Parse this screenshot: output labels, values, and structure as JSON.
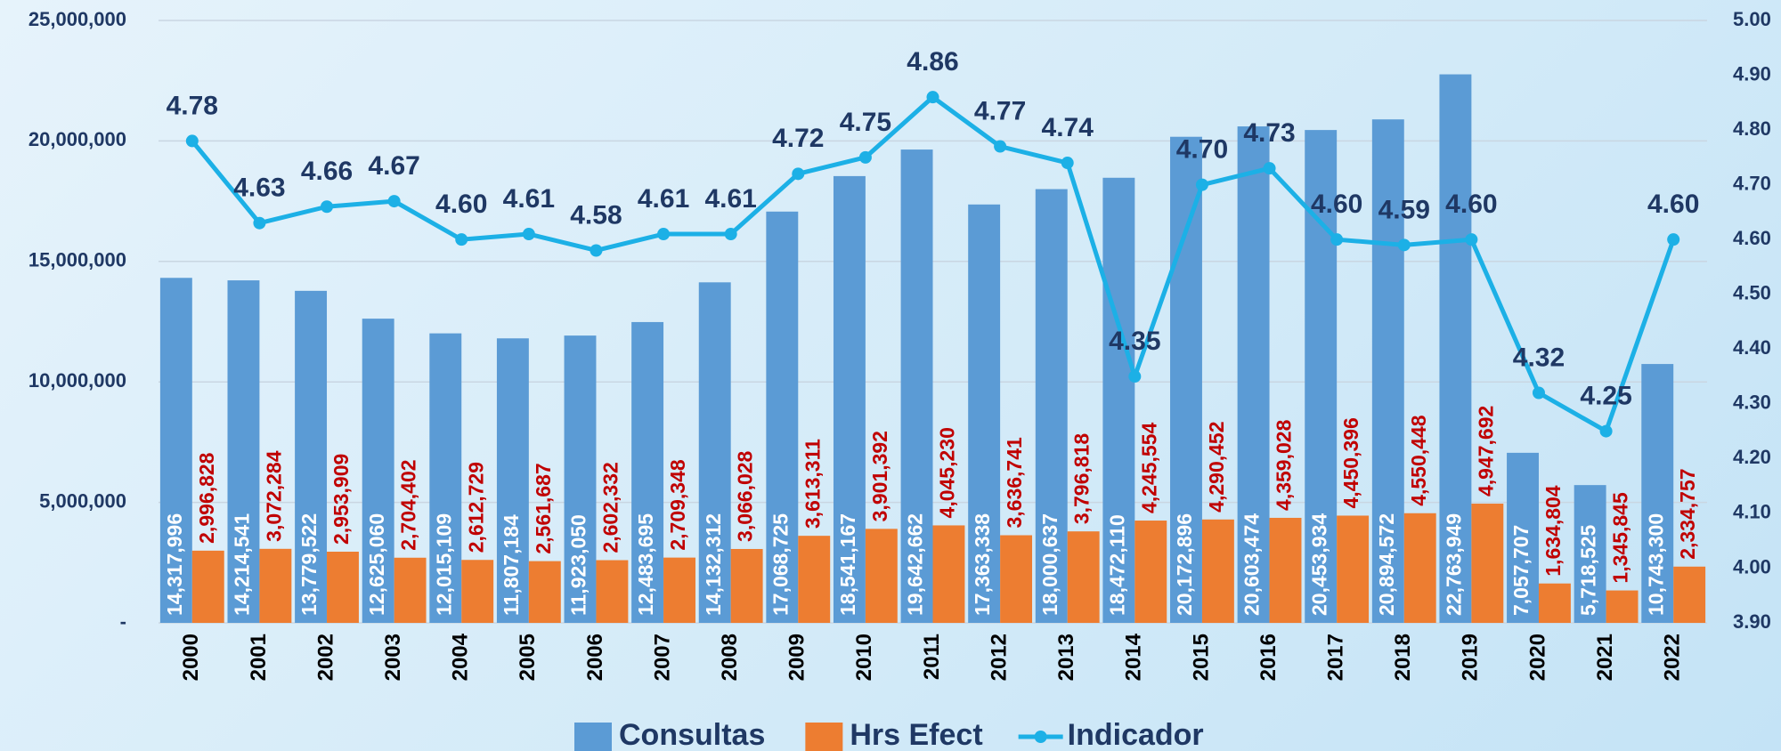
{
  "chart_data": {
    "type": "bar",
    "categories": [
      "2000",
      "2001",
      "2002",
      "2003",
      "2004",
      "2005",
      "2006",
      "2007",
      "2008",
      "2009",
      "2010",
      "2011",
      "2012",
      "2013",
      "2014",
      "2015",
      "2016",
      "2017",
      "2018",
      "2019",
      "2020",
      "2021",
      "2022"
    ],
    "series": [
      {
        "name": "Consultas",
        "type": "bar",
        "color": "#5b9bd5",
        "values": [
          14317996,
          14214541,
          13779522,
          12625060,
          12015109,
          11807184,
          11923050,
          12483695,
          14132312,
          17068725,
          18541167,
          19642662,
          17363338,
          18000637,
          18472110,
          20172896,
          20603474,
          20453934,
          20894572,
          22763949,
          7057707,
          5718525,
          10743300
        ],
        "value_labels": [
          "14,317,996",
          "14,214,541",
          "13,779,522",
          "12,625,060",
          "12,015,109",
          "11,807,184",
          "11,923,050",
          "12,483,695",
          "14,132,312",
          "17,068,725",
          "18,541,167",
          "19,642,662",
          "17,363,338",
          "18,000,637",
          "18,472,110",
          "20,172,896",
          "20,603,474",
          "20,453,934",
          "20,894,572",
          "22,763,949",
          "7,057,707",
          "5,718,525",
          "10,743,300"
        ]
      },
      {
        "name": "Hrs Efect",
        "type": "bar",
        "color": "#ed7d31",
        "values": [
          2996828,
          3072284,
          2953909,
          2704402,
          2612729,
          2561687,
          2602332,
          2709348,
          3066028,
          3613311,
          3901392,
          4045230,
          3636741,
          3796818,
          4245554,
          4290452,
          4359028,
          4450396,
          4550448,
          4947692,
          1634804,
          1345845,
          2334757
        ],
        "value_labels": [
          "2,996,828",
          "3,072,284",
          "2,953,909",
          "2,704,402",
          "2,612,729",
          "2,561,687",
          "2,602,332",
          "2,709,348",
          "3,066,028",
          "3,613,311",
          "3,901,392",
          "4,045,230",
          "3,636,741",
          "3,796,818",
          "4,245,554",
          "4,290,452",
          "4,359,028",
          "4,450,396",
          "4,550,448",
          "4,947,692",
          "1,634,804",
          "1,345,845",
          "2,334,757"
        ]
      },
      {
        "name": "Indicador",
        "type": "line",
        "axis": "y2",
        "color": "#1cb0e6",
        "values": [
          4.78,
          4.63,
          4.66,
          4.67,
          4.6,
          4.61,
          4.58,
          4.61,
          4.61,
          4.72,
          4.75,
          4.86,
          4.77,
          4.74,
          4.35,
          4.7,
          4.73,
          4.6,
          4.59,
          4.6,
          4.32,
          4.25,
          4.6
        ],
        "value_labels": [
          "4.78",
          "4.63",
          "4.66",
          "4.67",
          "4.60",
          "4.61",
          "4.58",
          "4.61",
          "4.61",
          "4.72",
          "4.75",
          "4.86",
          "4.77",
          "4.74",
          "4.35",
          "4.70",
          "4.73",
          "4.60",
          "4.59",
          "4.60",
          "4.32",
          "4.25",
          "4.60"
        ]
      }
    ],
    "ylim": [
      0,
      25000000
    ],
    "yticks": [
      {
        "value": 0,
        "label": "-"
      },
      {
        "value": 5000000,
        "label": "5,000,000"
      },
      {
        "value": 10000000,
        "label": "10,000,000"
      },
      {
        "value": 15000000,
        "label": "15,000,000"
      },
      {
        "value": 20000000,
        "label": "20,000,000"
      },
      {
        "value": 25000000,
        "label": "25,000,000"
      }
    ],
    "y2lim": [
      3.9,
      5.0
    ],
    "y2ticks": [
      {
        "value": 3.9,
        "label": "3.90"
      },
      {
        "value": 4.0,
        "label": "4.00"
      },
      {
        "value": 4.1,
        "label": "4.10"
      },
      {
        "value": 4.2,
        "label": "4.20"
      },
      {
        "value": 4.3,
        "label": "4.30"
      },
      {
        "value": 4.4,
        "label": "4.40"
      },
      {
        "value": 4.5,
        "label": "4.50"
      },
      {
        "value": 4.6,
        "label": "4.60"
      },
      {
        "value": 4.7,
        "label": "4.70"
      },
      {
        "value": 4.8,
        "label": "4.80"
      },
      {
        "value": 4.9,
        "label": "4.90"
      },
      {
        "value": 5.0,
        "label": "5.00"
      }
    ],
    "grid": true,
    "legend": "bottom"
  }
}
